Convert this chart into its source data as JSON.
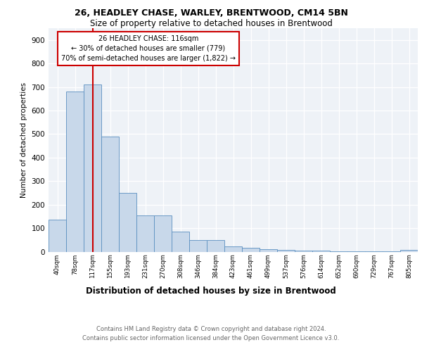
{
  "title1": "26, HEADLEY CHASE, WARLEY, BRENTWOOD, CM14 5BN",
  "title2": "Size of property relative to detached houses in Brentwood",
  "xlabel": "Distribution of detached houses by size in Brentwood",
  "ylabel": "Number of detached properties",
  "footer1": "Contains HM Land Registry data © Crown copyright and database right 2024.",
  "footer2": "Contains public sector information licensed under the Open Government Licence v3.0.",
  "annotation_line1": "26 HEADLEY CHASE: 116sqm",
  "annotation_line2": "← 30% of detached houses are smaller (779)",
  "annotation_line3": "70% of semi-detached houses are larger (1,822) →",
  "bar_labels": [
    "40sqm",
    "78sqm",
    "117sqm",
    "155sqm",
    "193sqm",
    "231sqm",
    "270sqm",
    "308sqm",
    "346sqm",
    "384sqm",
    "423sqm",
    "461sqm",
    "499sqm",
    "537sqm",
    "576sqm",
    "614sqm",
    "652sqm",
    "690sqm",
    "729sqm",
    "767sqm",
    "805sqm"
  ],
  "bar_values": [
    135,
    680,
    710,
    490,
    250,
    155,
    155,
    85,
    50,
    50,
    22,
    15,
    10,
    7,
    5,
    3,
    2,
    1,
    1,
    1,
    8
  ],
  "bar_color": "#c8d8ea",
  "bar_edge_color": "#5a8fc0",
  "marker_idx": 2,
  "marker_color": "#cc0000",
  "annotation_box_color": "#cc0000",
  "bg_color": "#eef2f7",
  "grid_color": "#d0d8e4",
  "ylim": [
    0,
    950
  ],
  "yticks": [
    0,
    100,
    200,
    300,
    400,
    500,
    600,
    700,
    800,
    900
  ]
}
